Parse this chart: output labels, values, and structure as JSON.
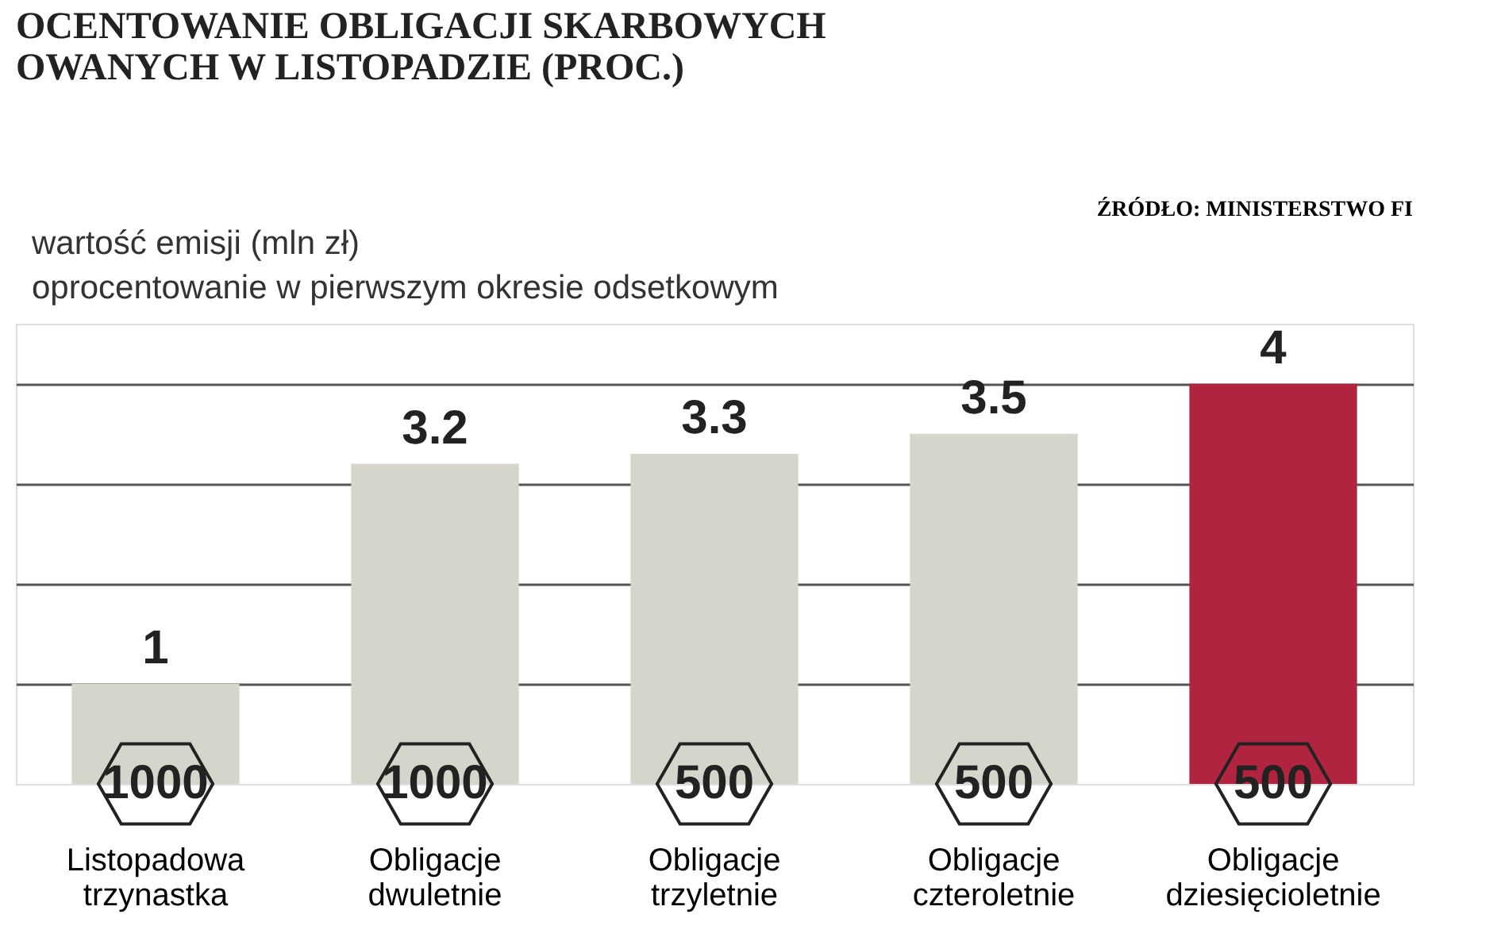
{
  "chart_data": {
    "type": "bar",
    "title": [
      "OCENTOWANIE OBLIGACJI SKARBOWYCH",
      "OWANYCH W LISTOPADZIE (PROC.)"
    ],
    "categories": [
      "Listopadowa trzynastka",
      "Obligacje dwuletnie",
      "Obligacje trzyletnie",
      "Obligacje czteroletnie",
      "Obligacje dziesięcioletnie"
    ],
    "values": [
      1,
      3.2,
      3.3,
      3.5,
      4
    ],
    "colors": [
      "#d6d5cc",
      "#d6d5cc",
      "#d6d5cc",
      "#d6d5cc",
      "#b0243f"
    ],
    "data_labels": true,
    "ylim": [
      0,
      4.6
    ],
    "yticks": [
      {
        "value": 1,
        "label": null
      },
      {
        "value": 2,
        "label": null
      },
      {
        "value": 3,
        "label": null
      },
      {
        "value": 4,
        "label": null
      }
    ],
    "grid": "y",
    "tick_labels": "x",
    "annotations": [
      "ŹRÓDŁO: MINISTERSTWO FI",
      "wartość emisji (mln zł)",
      "oprocentowanie w pierwszym okresie odsetkowym",
      {
        "text": "1000",
        "x": "Listopadowa trzynastka"
      },
      {
        "text": "1000",
        "x": "Obligacje dwuletnie"
      },
      {
        "text": "500",
        "x": "Obligacje trzyletnie"
      },
      {
        "text": "500",
        "x": "Obligacje czteroletnie"
      },
      {
        "text": "500",
        "x": "Obligacje dziesięcioletnie"
      }
    ]
  }
}
